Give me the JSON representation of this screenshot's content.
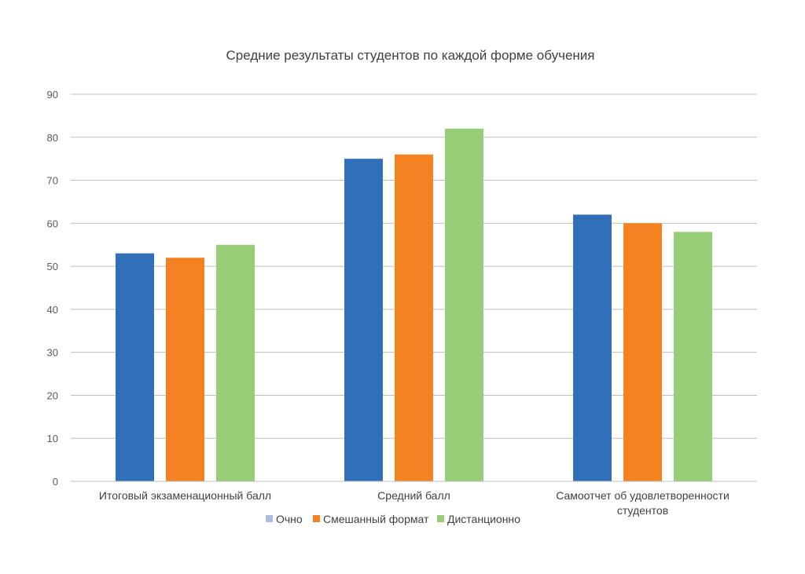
{
  "chart_data": {
    "type": "bar",
    "title": "Средние результаты студентов по каждой форме обучения",
    "xlabel": "",
    "ylabel": "",
    "categories": [
      [
        "Итоговый экзаменационный балл"
      ],
      [
        "Средний балл"
      ],
      [
        "Самоотчет об удовлетворенности",
        "студентов"
      ]
    ],
    "series": [
      {
        "name": "Очно",
        "color": "#3070b9",
        "values": [
          53,
          75,
          62
        ]
      },
      {
        "name": "Смешанный формат",
        "color": "#f58220",
        "values": [
          52,
          76,
          60
        ]
      },
      {
        "name": "Дистанционно",
        "color": "#98cd78",
        "values": [
          55,
          82,
          58
        ]
      }
    ],
    "ylim": [
      0,
      90
    ],
    "yticks": [
      0,
      10,
      20,
      30,
      40,
      50,
      60,
      70,
      80,
      90
    ],
    "grid": true,
    "legend_position": "bottom",
    "legend_swatch_colors": [
      "#a9bee4",
      "#f58220",
      "#98cd78"
    ]
  }
}
